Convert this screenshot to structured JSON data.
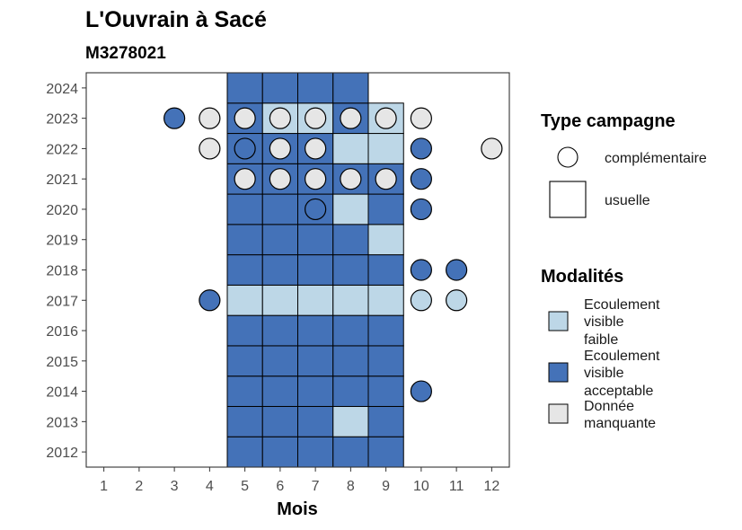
{
  "chart_data": {
    "type": "heatmap",
    "title": "L'Ouvrain à Sacé",
    "subtitle": "M3278021",
    "xlabel": "Mois",
    "ylabel": "",
    "x_ticks": [
      "1",
      "2",
      "3",
      "4",
      "5",
      "6",
      "7",
      "8",
      "9",
      "10",
      "11",
      "12"
    ],
    "y_ticks": [
      "2012",
      "2013",
      "2014",
      "2015",
      "2016",
      "2017",
      "2018",
      "2019",
      "2020",
      "2021",
      "2022",
      "2023",
      "2024"
    ],
    "xlim": [
      0.5,
      12.5
    ],
    "ylim": [
      2011.5,
      2024.5
    ],
    "grid": false,
    "legend_position": "right",
    "colors": {
      "acceptable": "#4472b8",
      "faible": "#bdd7e7",
      "manquante": "#e6e6e6"
    },
    "shapes": {
      "usuelle": "square",
      "complementaire": "circle"
    },
    "legends": [
      {
        "title": "Type campagne",
        "items": [
          {
            "key": "complementaire",
            "label": "complémentaire"
          },
          {
            "key": "usuelle",
            "label": "usuelle"
          }
        ]
      },
      {
        "title": "Modalités",
        "items": [
          {
            "key": "faible",
            "lines": [
              "Ecoulement",
              "visible",
              "faible"
            ]
          },
          {
            "key": "acceptable",
            "lines": [
              "Ecoulement",
              "visible",
              "acceptable"
            ]
          },
          {
            "key": "manquante",
            "lines": [
              "Donnée",
              "manquante"
            ]
          }
        ]
      }
    ],
    "tiles": [
      {
        "year": 2012,
        "month": 5,
        "value": "acceptable"
      },
      {
        "year": 2012,
        "month": 6,
        "value": "acceptable"
      },
      {
        "year": 2012,
        "month": 7,
        "value": "acceptable"
      },
      {
        "year": 2012,
        "month": 8,
        "value": "acceptable"
      },
      {
        "year": 2012,
        "month": 9,
        "value": "acceptable"
      },
      {
        "year": 2013,
        "month": 5,
        "value": "acceptable"
      },
      {
        "year": 2013,
        "month": 6,
        "value": "acceptable"
      },
      {
        "year": 2013,
        "month": 7,
        "value": "acceptable"
      },
      {
        "year": 2013,
        "month": 8,
        "value": "faible"
      },
      {
        "year": 2013,
        "month": 9,
        "value": "acceptable"
      },
      {
        "year": 2014,
        "month": 5,
        "value": "acceptable"
      },
      {
        "year": 2014,
        "month": 6,
        "value": "acceptable"
      },
      {
        "year": 2014,
        "month": 7,
        "value": "acceptable"
      },
      {
        "year": 2014,
        "month": 8,
        "value": "acceptable"
      },
      {
        "year": 2014,
        "month": 9,
        "value": "acceptable"
      },
      {
        "year": 2015,
        "month": 5,
        "value": "acceptable"
      },
      {
        "year": 2015,
        "month": 6,
        "value": "acceptable"
      },
      {
        "year": 2015,
        "month": 7,
        "value": "acceptable"
      },
      {
        "year": 2015,
        "month": 8,
        "value": "acceptable"
      },
      {
        "year": 2015,
        "month": 9,
        "value": "acceptable"
      },
      {
        "year": 2016,
        "month": 5,
        "value": "acceptable"
      },
      {
        "year": 2016,
        "month": 6,
        "value": "acceptable"
      },
      {
        "year": 2016,
        "month": 7,
        "value": "acceptable"
      },
      {
        "year": 2016,
        "month": 8,
        "value": "acceptable"
      },
      {
        "year": 2016,
        "month": 9,
        "value": "acceptable"
      },
      {
        "year": 2017,
        "month": 5,
        "value": "faible"
      },
      {
        "year": 2017,
        "month": 6,
        "value": "faible"
      },
      {
        "year": 2017,
        "month": 7,
        "value": "faible"
      },
      {
        "year": 2017,
        "month": 8,
        "value": "faible"
      },
      {
        "year": 2017,
        "month": 9,
        "value": "faible"
      },
      {
        "year": 2018,
        "month": 5,
        "value": "acceptable"
      },
      {
        "year": 2018,
        "month": 6,
        "value": "acceptable"
      },
      {
        "year": 2018,
        "month": 7,
        "value": "acceptable"
      },
      {
        "year": 2018,
        "month": 8,
        "value": "acceptable"
      },
      {
        "year": 2018,
        "month": 9,
        "value": "acceptable"
      },
      {
        "year": 2019,
        "month": 5,
        "value": "acceptable"
      },
      {
        "year": 2019,
        "month": 6,
        "value": "acceptable"
      },
      {
        "year": 2019,
        "month": 7,
        "value": "acceptable"
      },
      {
        "year": 2019,
        "month": 8,
        "value": "acceptable"
      },
      {
        "year": 2019,
        "month": 9,
        "value": "faible"
      },
      {
        "year": 2020,
        "month": 5,
        "value": "acceptable"
      },
      {
        "year": 2020,
        "month": 6,
        "value": "acceptable"
      },
      {
        "year": 2020,
        "month": 7,
        "value": "acceptable"
      },
      {
        "year": 2020,
        "month": 8,
        "value": "faible"
      },
      {
        "year": 2020,
        "month": 9,
        "value": "acceptable"
      },
      {
        "year": 2021,
        "month": 5,
        "value": "acceptable"
      },
      {
        "year": 2021,
        "month": 6,
        "value": "acceptable"
      },
      {
        "year": 2021,
        "month": 7,
        "value": "acceptable"
      },
      {
        "year": 2021,
        "month": 8,
        "value": "acceptable"
      },
      {
        "year": 2021,
        "month": 9,
        "value": "acceptable"
      },
      {
        "year": 2022,
        "month": 5,
        "value": "acceptable"
      },
      {
        "year": 2022,
        "month": 6,
        "value": "acceptable"
      },
      {
        "year": 2022,
        "month": 7,
        "value": "acceptable"
      },
      {
        "year": 2022,
        "month": 8,
        "value": "faible"
      },
      {
        "year": 2022,
        "month": 9,
        "value": "faible"
      },
      {
        "year": 2023,
        "month": 5,
        "value": "acceptable"
      },
      {
        "year": 2023,
        "month": 6,
        "value": "faible"
      },
      {
        "year": 2023,
        "month": 7,
        "value": "faible"
      },
      {
        "year": 2023,
        "month": 8,
        "value": "acceptable"
      },
      {
        "year": 2023,
        "month": 9,
        "value": "faible"
      },
      {
        "year": 2024,
        "month": 5,
        "value": "acceptable"
      },
      {
        "year": 2024,
        "month": 6,
        "value": "acceptable"
      },
      {
        "year": 2024,
        "month": 7,
        "value": "acceptable"
      },
      {
        "year": 2024,
        "month": 8,
        "value": "acceptable"
      }
    ],
    "points": [
      {
        "year": 2014,
        "month": 10,
        "value": "acceptable"
      },
      {
        "year": 2017,
        "month": 4,
        "value": "acceptable"
      },
      {
        "year": 2017,
        "month": 10,
        "value": "faible"
      },
      {
        "year": 2017,
        "month": 11,
        "value": "faible"
      },
      {
        "year": 2018,
        "month": 10,
        "value": "acceptable"
      },
      {
        "year": 2018,
        "month": 11,
        "value": "acceptable"
      },
      {
        "year": 2020,
        "month": 7,
        "value": "acceptable"
      },
      {
        "year": 2020,
        "month": 10,
        "value": "acceptable"
      },
      {
        "year": 2021,
        "month": 5,
        "value": "manquante"
      },
      {
        "year": 2021,
        "month": 6,
        "value": "manquante"
      },
      {
        "year": 2021,
        "month": 7,
        "value": "manquante"
      },
      {
        "year": 2021,
        "month": 8,
        "value": "manquante"
      },
      {
        "year": 2021,
        "month": 9,
        "value": "manquante"
      },
      {
        "year": 2021,
        "month": 10,
        "value": "acceptable"
      },
      {
        "year": 2022,
        "month": 4,
        "value": "manquante"
      },
      {
        "year": 2022,
        "month": 5,
        "value": "acceptable"
      },
      {
        "year": 2022,
        "month": 6,
        "value": "manquante"
      },
      {
        "year": 2022,
        "month": 7,
        "value": "manquante"
      },
      {
        "year": 2022,
        "month": 10,
        "value": "acceptable"
      },
      {
        "year": 2022,
        "month": 12,
        "value": "manquante"
      },
      {
        "year": 2023,
        "month": 3,
        "value": "acceptable"
      },
      {
        "year": 2023,
        "month": 4,
        "value": "manquante"
      },
      {
        "year": 2023,
        "month": 5,
        "value": "manquante"
      },
      {
        "year": 2023,
        "month": 6,
        "value": "manquante"
      },
      {
        "year": 2023,
        "month": 7,
        "value": "manquante"
      },
      {
        "year": 2023,
        "month": 8,
        "value": "manquante"
      },
      {
        "year": 2023,
        "month": 9,
        "value": "manquante"
      },
      {
        "year": 2023,
        "month": 10,
        "value": "manquante"
      }
    ]
  }
}
